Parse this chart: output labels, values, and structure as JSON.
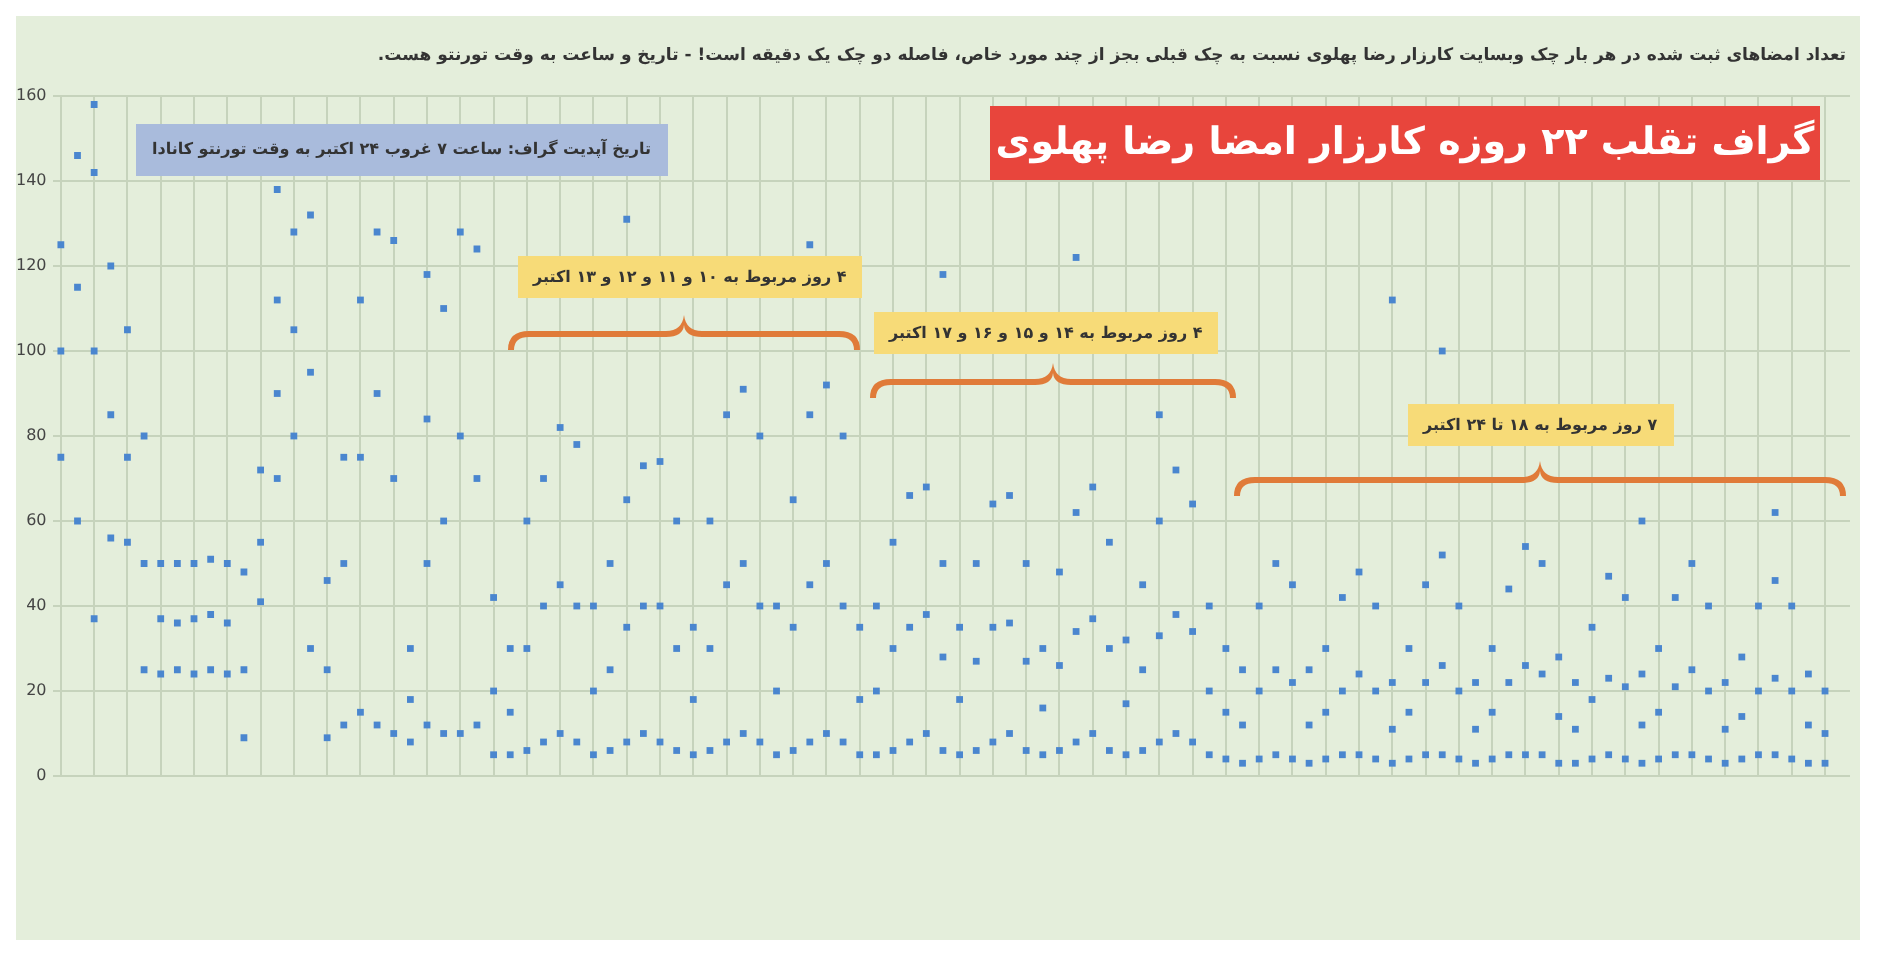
{
  "chart_data": {
    "type": "scatter",
    "title": "گراف تقلب ۲۲ روزه کارزار امضا رضا پهلوی",
    "subtitle": "تعداد امضاهای ثبت شده در هر بار چک وبسایت کارزار رضا پهلوی نسبت به چک قبلی بجز از چند مورد خاص، فاصله دو چک یک دقیقه است! - تاریخ و ساعت به وقت تورنتو هست.",
    "categories": [
      null,
      null,
      null,
      null,
      null,
      null,
      null,
      null,
      null,
      null,
      null,
      null,
      null,
      null,
      null,
      null,
      null,
      null,
      null,
      null,
      null,
      null,
      null,
      null,
      null,
      null,
      null,
      null,
      null,
      null,
      null,
      null,
      null,
      null,
      null,
      null,
      null,
      null,
      null,
      null,
      null,
      null,
      null,
      null,
      null,
      null,
      null,
      null,
      null,
      null,
      null,
      null,
      null,
      null,
      null,
      null,
      null,
      null,
      null,
      null,
      null,
      null,
      null,
      null,
      null,
      null,
      null,
      null,
      null,
      null,
      null,
      null,
      null,
      null,
      null,
      null,
      null,
      null,
      null,
      null,
      null,
      null,
      null,
      null,
      null,
      null,
      null,
      null,
      null,
      null,
      null,
      null,
      null,
      null,
      null,
      null,
      null,
      null,
      null,
      null,
      null,
      null,
      null,
      null,
      null,
      null,
      null,
      null
    ],
    "series": [
      {
        "color": "#4a86cf",
        "values": [
          125,
          146,
          142,
          120,
          105,
          80,
          50,
          50,
          50,
          51,
          50,
          48,
          72,
          112,
          128,
          132,
          46,
          75,
          112,
          128,
          126,
          30,
          84,
          110,
          128,
          124,
          42,
          30,
          60,
          70,
          82,
          78,
          40,
          50,
          65,
          73,
          74,
          60,
          35,
          60,
          85,
          91,
          80,
          40,
          65,
          85,
          92,
          80,
          35,
          40,
          55,
          66,
          68,
          50,
          35,
          50,
          64,
          66,
          50,
          30,
          48,
          62,
          68,
          55,
          32,
          45,
          60,
          72,
          64,
          40,
          30,
          25,
          40,
          50,
          45,
          25,
          30,
          42,
          48,
          40,
          22,
          30,
          45,
          52,
          40,
          22,
          30,
          44,
          54,
          50,
          28,
          22,
          35,
          47,
          42,
          24,
          30,
          42,
          50,
          40,
          22,
          28,
          40,
          46,
          40,
          24,
          20,
          null
        ]
      },
      {
        "color": "#4a86cf",
        "values": [
          100,
          115,
          100,
          85,
          75,
          50,
          37,
          36,
          37,
          38,
          36,
          25,
          55,
          90,
          105,
          95,
          25,
          50,
          75,
          90,
          70,
          18,
          50,
          60,
          80,
          70,
          20,
          15,
          30,
          40,
          45,
          40,
          20,
          25,
          35,
          40,
          40,
          30,
          18,
          30,
          45,
          50,
          40,
          20,
          35,
          45,
          50,
          40,
          18,
          20,
          30,
          35,
          38,
          28,
          18,
          27,
          35,
          36,
          27,
          16,
          26,
          34,
          37,
          30,
          17,
          25,
          33,
          38,
          34,
          20,
          15,
          12,
          20,
          25,
          22,
          12,
          15,
          20,
          24,
          20,
          11,
          15,
          22,
          26,
          20,
          11,
          15,
          22,
          26,
          24,
          14,
          11,
          18,
          23,
          21,
          12,
          15,
          21,
          25,
          20,
          11,
          14,
          20,
          23,
          20,
          12,
          10,
          null
        ]
      },
      {
        "color": "#4a86cf",
        "values": [
          75,
          60,
          37,
          56,
          55,
          25,
          24,
          25,
          24,
          25,
          24,
          9,
          41,
          70,
          80,
          30,
          9,
          12,
          15,
          12,
          10,
          8,
          12,
          10,
          10,
          12,
          5,
          5,
          6,
          8,
          10,
          8,
          5,
          6,
          8,
          10,
          8,
          6,
          5,
          6,
          8,
          10,
          8,
          5,
          6,
          8,
          10,
          8,
          5,
          5,
          6,
          8,
          10,
          6,
          5,
          6,
          8,
          10,
          6,
          5,
          6,
          8,
          10,
          6,
          5,
          6,
          8,
          10,
          8,
          5,
          4,
          3,
          4,
          5,
          4,
          3,
          4,
          5,
          5,
          4,
          3,
          4,
          5,
          5,
          4,
          3,
          4,
          5,
          5,
          5,
          3,
          3,
          4,
          5,
          4,
          3,
          4,
          5,
          5,
          4,
          3,
          4,
          5,
          5,
          4,
          3,
          3,
          null
        ]
      },
      {
        "color": "#4a86cf",
        "values": [
          null,
          null,
          158,
          null,
          null,
          null,
          null,
          null,
          null,
          null,
          null,
          null,
          null,
          138,
          null,
          null,
          null,
          null,
          null,
          null,
          null,
          null,
          118,
          null,
          null,
          null,
          null,
          null,
          null,
          null,
          null,
          null,
          null,
          null,
          131,
          null,
          null,
          null,
          null,
          null,
          null,
          null,
          null,
          null,
          null,
          125,
          null,
          null,
          null,
          null,
          null,
          null,
          null,
          118,
          null,
          null,
          null,
          null,
          null,
          null,
          null,
          122,
          null,
          null,
          null,
          null,
          85,
          null,
          null,
          null,
          null,
          null,
          null,
          null,
          null,
          null,
          null,
          null,
          null,
          null,
          112,
          null,
          null,
          100,
          null,
          null,
          null,
          null,
          null,
          null,
          null,
          null,
          null,
          null,
          null,
          60,
          null,
          null,
          null,
          null,
          null,
          null,
          null,
          62,
          null,
          null,
          null,
          null
        ]
      }
    ],
    "marker": "square",
    "grid": true,
    "ylim": [
      0,
      160
    ],
    "yticks": [
      0,
      20,
      40,
      60,
      80,
      100,
      120,
      140,
      160
    ],
    "annotations": [
      "تاریخ آپدیت گراف: ساعت ۷ غروب ۲۴ اکتبر به وقت تورنتو کانادا",
      "۴ روز مربوط به ۱۰ و ۱۱ و ۱۲ و ۱۳ اکتبر",
      "۴ روز مربوط به ۱۴ و ۱۵ و ۱۶ و ۱۷ اکتبر",
      "۷ روز مربوط به ۱۸ تا ۲۴ اکتبر"
    ]
  }
}
